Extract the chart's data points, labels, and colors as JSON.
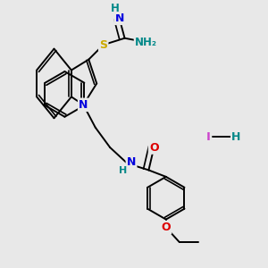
{
  "background_color": "#e8e8e8",
  "fig_size": [
    3.0,
    3.0
  ],
  "dpi": 100,
  "colors": {
    "C": "#000000",
    "N": "#0000dd",
    "O": "#dd0000",
    "S": "#ccaa00",
    "I": "#cc44cc",
    "H": "#008888",
    "bond": "#000000"
  },
  "bond_lw": 1.4
}
